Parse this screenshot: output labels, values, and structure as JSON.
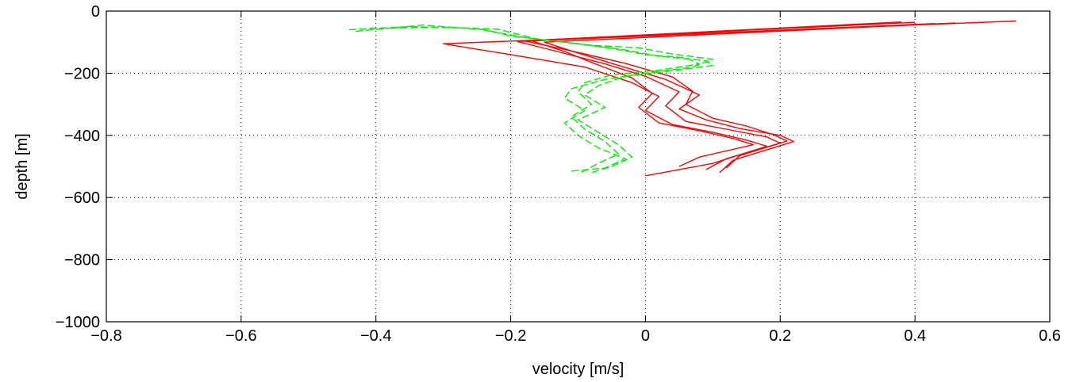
{
  "chart_data": {
    "type": "line",
    "title": "",
    "xlabel": "velocity [m/s]",
    "ylabel": "depth [m]",
    "xlim": [
      -0.8,
      0.6
    ],
    "ylim": [
      -1000,
      0
    ],
    "xticks": [
      -0.8,
      -0.6,
      -0.4,
      -0.2,
      0,
      0.2,
      0.4,
      0.6
    ],
    "yticks": [
      -1000,
      -800,
      -600,
      -400,
      -200,
      0
    ],
    "xtick_labels": [
      "−0.8",
      "−0.6",
      "−0.4",
      "−0.2",
      "0",
      "0.2",
      "0.4",
      "0.6"
    ],
    "ytick_labels": [
      "−1000",
      "−800",
      "−600",
      "−400",
      "−200",
      "0"
    ],
    "grid": true,
    "colors": {
      "red": "#ff0000",
      "green": "#00ee00",
      "axes": "#000000"
    },
    "series": [
      {
        "color": "red",
        "style": "solid",
        "x": [
          0.38,
          -0.17,
          -0.12,
          -0.08,
          -0.02,
          0.01,
          -0.01,
          0.02,
          0.08,
          0.13,
          0.16,
          0.08,
          0.05
        ],
        "y": [
          -35,
          -95,
          -130,
          -165,
          -215,
          -265,
          -310,
          -360,
          -385,
          -410,
          -430,
          -470,
          -500
        ]
      },
      {
        "color": "red",
        "style": "solid",
        "x": [
          0.43,
          -0.19,
          -0.14,
          -0.06,
          0.0,
          0.05,
          0.03,
          0.06,
          0.12,
          0.18,
          0.2,
          0.12,
          0.09
        ],
        "y": [
          -40,
          -98,
          -125,
          -170,
          -210,
          -260,
          -305,
          -355,
          -380,
          -405,
          -425,
          -475,
          -510
        ]
      },
      {
        "color": "red",
        "style": "solid",
        "x": [
          0.46,
          -0.15,
          -0.1,
          -0.04,
          0.03,
          0.08,
          0.05,
          0.09,
          0.14,
          0.2,
          0.22,
          0.13,
          0.11
        ],
        "y": [
          -38,
          -100,
          -135,
          -175,
          -220,
          -270,
          -315,
          -350,
          -378,
          -400,
          -420,
          -480,
          -520
        ]
      },
      {
        "color": "red",
        "style": "solid",
        "x": [
          0.55,
          -0.3,
          -0.2,
          -0.09,
          -0.02,
          0.02,
          0.0,
          0.04,
          0.1,
          0.15,
          0.18,
          0.1,
          0.0
        ],
        "y": [
          -32,
          -105,
          -140,
          -180,
          -230,
          -275,
          -320,
          -365,
          -390,
          -415,
          -435,
          -490,
          -530
        ]
      },
      {
        "color": "red",
        "style": "solid",
        "x": [
          0.4,
          -0.18,
          -0.11,
          -0.03,
          0.04,
          0.07,
          0.06,
          0.1,
          0.15,
          0.19,
          0.21,
          0.14,
          0.12
        ],
        "y": [
          -36,
          -96,
          -128,
          -168,
          -212,
          -258,
          -300,
          -345,
          -370,
          -398,
          -418,
          -465,
          -505
        ]
      },
      {
        "color": "green",
        "style": "dashed",
        "x": [
          -0.44,
          -0.35,
          -0.25,
          -0.2,
          -0.12,
          -0.05,
          0.0,
          0.06,
          0.08,
          0.02,
          -0.05,
          -0.09,
          -0.1,
          -0.08,
          -0.11,
          -0.09,
          -0.06,
          -0.04,
          -0.07,
          -0.1
        ],
        "y": [
          -60,
          -50,
          -55,
          -80,
          -100,
          -120,
          -140,
          -150,
          -170,
          -190,
          -205,
          -230,
          -260,
          -300,
          -340,
          -380,
          -420,
          -460,
          -490,
          -525
        ]
      },
      {
        "color": "green",
        "style": "dashed",
        "x": [
          -0.43,
          -0.33,
          -0.24,
          -0.18,
          -0.1,
          -0.03,
          0.02,
          0.09,
          0.1,
          0.03,
          -0.03,
          -0.07,
          -0.09,
          -0.06,
          -0.1,
          -0.07,
          -0.04,
          -0.02,
          -0.05,
          -0.08
        ],
        "y": [
          -65,
          -45,
          -60,
          -85,
          -105,
          -125,
          -145,
          -160,
          -175,
          -195,
          -210,
          -240,
          -270,
          -310,
          -350,
          -390,
          -430,
          -470,
          -500,
          -520
        ]
      },
      {
        "color": "green",
        "style": "dashed",
        "x": [
          -0.41,
          -0.3,
          -0.22,
          -0.16,
          -0.08,
          -0.01,
          0.04,
          0.1,
          0.07,
          0.0,
          -0.06,
          -0.11,
          -0.12,
          -0.09,
          -0.12,
          -0.1,
          -0.07,
          -0.03,
          -0.06,
          -0.11
        ],
        "y": [
          -55,
          -52,
          -58,
          -90,
          -110,
          -118,
          -138,
          -155,
          -180,
          -200,
          -220,
          -250,
          -280,
          -320,
          -360,
          -400,
          -440,
          -475,
          -505,
          -515
        ]
      }
    ]
  }
}
